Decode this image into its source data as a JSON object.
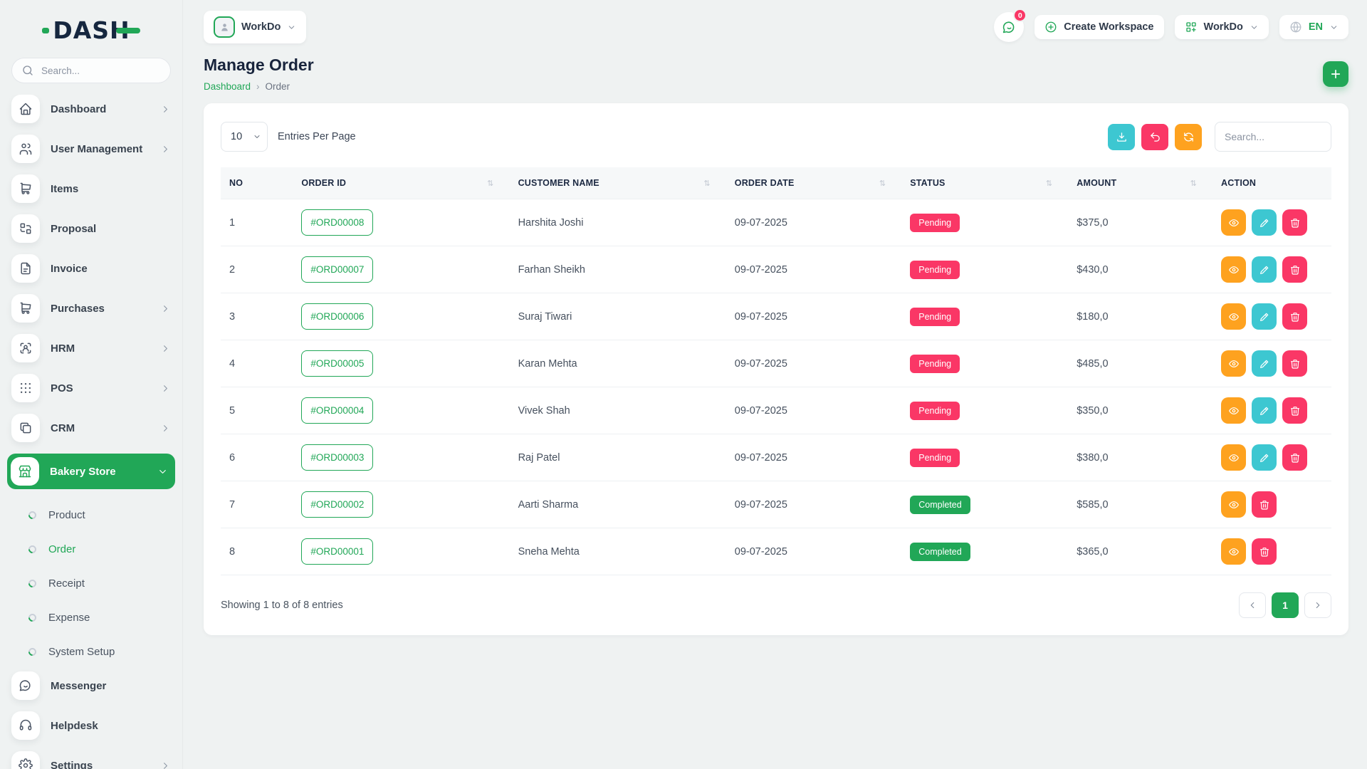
{
  "brand": {
    "logo_text": "DASH"
  },
  "sidebar": {
    "search_placeholder": "Search...",
    "items": [
      {
        "label": "Dashboard",
        "icon": "home",
        "chevron": "right"
      },
      {
        "label": "User Management",
        "icon": "users",
        "chevron": "right"
      },
      {
        "label": "Items",
        "icon": "cart",
        "chevron": ""
      },
      {
        "label": "Proposal",
        "icon": "replace",
        "chevron": ""
      },
      {
        "label": "Invoice",
        "icon": "file",
        "chevron": ""
      },
      {
        "label": "Purchases",
        "icon": "cart",
        "chevron": "right"
      },
      {
        "label": "HRM",
        "icon": "user-scan",
        "chevron": "right"
      },
      {
        "label": "POS",
        "icon": "grid-dots",
        "chevron": "right"
      },
      {
        "label": "CRM",
        "icon": "copy",
        "chevron": "right"
      },
      {
        "label": "Bakery Store",
        "icon": "store",
        "chevron": "down",
        "active": true
      }
    ],
    "sub_items": [
      {
        "label": "Product"
      },
      {
        "label": "Order",
        "active": true
      },
      {
        "label": "Receipt"
      },
      {
        "label": "Expense"
      },
      {
        "label": "System Setup"
      }
    ],
    "bottom_items": [
      {
        "label": "Messenger",
        "icon": "chat",
        "chevron": ""
      },
      {
        "label": "Helpdesk",
        "icon": "headset",
        "chevron": ""
      },
      {
        "label": "Settings",
        "icon": "gear",
        "chevron": "right"
      }
    ]
  },
  "topbar": {
    "workspace_label": "WorkDo",
    "chat_badge": "0",
    "create_workspace_label": "Create Workspace",
    "workdo_label": "WorkDo",
    "language_label": "EN"
  },
  "page": {
    "title": "Manage Order",
    "breadcrumb": [
      "Dashboard",
      "Order"
    ],
    "breadcrumb_separator": "›"
  },
  "table_card": {
    "entries_per_page": "10",
    "entries_label": "Entries Per Page",
    "search_placeholder": "Search...",
    "sort_glyph": "⇅",
    "columns": [
      {
        "label": "NO",
        "sortable": false
      },
      {
        "label": "ORDER ID",
        "sortable": true
      },
      {
        "label": "CUSTOMER NAME",
        "sortable": true
      },
      {
        "label": "ORDER DATE",
        "sortable": true
      },
      {
        "label": "STATUS",
        "sortable": true
      },
      {
        "label": "AMOUNT",
        "sortable": true
      },
      {
        "label": "ACTION",
        "sortable": false
      }
    ],
    "rows": [
      {
        "no": "1",
        "order_id": "#ORD00008",
        "customer": "Harshita Joshi",
        "date": "09-07-2025",
        "status": "Pending",
        "amount": "$375,0",
        "actions": [
          "view",
          "edit",
          "delete"
        ]
      },
      {
        "no": "2",
        "order_id": "#ORD00007",
        "customer": "Farhan Sheikh",
        "date": "09-07-2025",
        "status": "Pending",
        "amount": "$430,0",
        "actions": [
          "view",
          "edit",
          "delete"
        ]
      },
      {
        "no": "3",
        "order_id": "#ORD00006",
        "customer": "Suraj Tiwari",
        "date": "09-07-2025",
        "status": "Pending",
        "amount": "$180,0",
        "actions": [
          "view",
          "edit",
          "delete"
        ]
      },
      {
        "no": "4",
        "order_id": "#ORD00005",
        "customer": "Karan Mehta",
        "date": "09-07-2025",
        "status": "Pending",
        "amount": "$485,0",
        "actions": [
          "view",
          "edit",
          "delete"
        ]
      },
      {
        "no": "5",
        "order_id": "#ORD00004",
        "customer": "Vivek Shah",
        "date": "09-07-2025",
        "status": "Pending",
        "amount": "$350,0",
        "actions": [
          "view",
          "edit",
          "delete"
        ]
      },
      {
        "no": "6",
        "order_id": "#ORD00003",
        "customer": "Raj Patel",
        "date": "09-07-2025",
        "status": "Pending",
        "amount": "$380,0",
        "actions": [
          "view",
          "edit",
          "delete"
        ]
      },
      {
        "no": "7",
        "order_id": "#ORD00002",
        "customer": "Aarti Sharma",
        "date": "09-07-2025",
        "status": "Completed",
        "amount": "$585,0",
        "actions": [
          "view",
          "delete"
        ]
      },
      {
        "no": "8",
        "order_id": "#ORD00001",
        "customer": "Sneha Mehta",
        "date": "09-07-2025",
        "status": "Completed",
        "amount": "$365,0",
        "actions": [
          "view",
          "delete"
        ]
      }
    ],
    "footer": {
      "showing_text": "Showing 1 to 8 of 8 entries",
      "pages": [
        "1"
      ],
      "active_page": "1"
    }
  },
  "colors": {
    "accent": "#21a757",
    "info": "#3dc7d1",
    "warning": "#fea21f",
    "danger": "#fa3766",
    "dark": "#15223b"
  },
  "status_colors": {
    "Pending": "#fa3766",
    "Completed": "#21a757"
  }
}
